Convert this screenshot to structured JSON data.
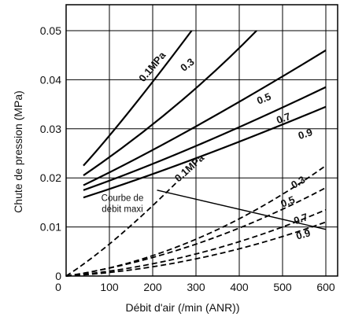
{
  "chart_data": {
    "type": "line",
    "title": "",
    "xlabel": "Débit d'air (/min (ANR))",
    "ylabel": "Chute de pression (MPa)",
    "xlim": [
      0,
      630
    ],
    "ylim": [
      0,
      0.054
    ],
    "x_ticks": [
      0,
      100,
      200,
      300,
      400,
      500,
      600
    ],
    "x_tick_labels": [
      "0",
      "100",
      "200",
      "300",
      "400",
      "500",
      "600"
    ],
    "y_ticks": [
      0,
      0.01,
      0.02,
      0.03,
      0.04,
      0.05
    ],
    "y_tick_labels": [
      "0",
      "0.01",
      "0.02",
      "0.03",
      "0.04",
      "0.05"
    ],
    "grid": true,
    "series": [
      {
        "name": "0.1MPa",
        "style": "solid",
        "x": [
          40,
          150,
          290
        ],
        "y": [
          0.0225,
          0.034,
          0.05
        ]
      },
      {
        "name": "0.3",
        "style": "solid",
        "x": [
          40,
          250,
          440
        ],
        "y": [
          0.0205,
          0.0345,
          0.05
        ]
      },
      {
        "name": "0.5",
        "style": "solid",
        "x": [
          40,
          300,
          600
        ],
        "y": [
          0.0185,
          0.0305,
          0.046
        ]
      },
      {
        "name": "0.7",
        "style": "solid",
        "x": [
          40,
          300,
          600
        ],
        "y": [
          0.0175,
          0.0265,
          0.0385
        ]
      },
      {
        "name": "0.9",
        "style": "solid",
        "x": [
          40,
          300,
          600
        ],
        "y": [
          0.016,
          0.024,
          0.0345
        ]
      },
      {
        "name": "0.1MPa",
        "style": "dashed",
        "x": [
          0,
          120,
          260
        ],
        "y": [
          0,
          0.008,
          0.0195
        ]
      },
      {
        "name": "0.3",
        "style": "dashed",
        "x": [
          0,
          300,
          600
        ],
        "y": [
          0,
          0.0075,
          0.0225
        ]
      },
      {
        "name": "0.5",
        "style": "dashed",
        "x": [
          0,
          300,
          600
        ],
        "y": [
          0,
          0.0065,
          0.018
        ]
      },
      {
        "name": "0.7",
        "style": "dashed",
        "x": [
          0,
          300,
          600
        ],
        "y": [
          0,
          0.0045,
          0.0135
        ]
      },
      {
        "name": "0.9",
        "style": "dashed",
        "x": [
          0,
          300,
          600
        ],
        "y": [
          0,
          0.0035,
          0.011
        ]
      }
    ],
    "max_flow_curve": {
      "name": "Courbe de débit maxi",
      "x": [
        210,
        600
      ],
      "y": [
        0.0175,
        0.0095
      ]
    },
    "labels": [
      {
        "text": "0.1MPa",
        "x": 205,
        "y": 0.0422,
        "angle": -50
      },
      {
        "text": "0.3",
        "x": 285,
        "y": 0.0425,
        "angle": -38
      },
      {
        "text": "0.5",
        "x": 460,
        "y": 0.0355,
        "angle": -22
      },
      {
        "text": "0.7",
        "x": 505,
        "y": 0.0315,
        "angle": -20
      },
      {
        "text": "0.9",
        "x": 555,
        "y": 0.0283,
        "angle": -18
      },
      {
        "text": "0.1MPa",
        "x": 290,
        "y": 0.0215,
        "angle": -42
      },
      {
        "text": "0.3",
        "x": 540,
        "y": 0.0185,
        "angle": -30
      },
      {
        "text": "0.5",
        "x": 515,
        "y": 0.0145,
        "angle": -22
      },
      {
        "text": "0.7",
        "x": 545,
        "y": 0.011,
        "angle": -20
      },
      {
        "text": "0.9",
        "x": 550,
        "y": 0.0078,
        "angle": -16
      }
    ],
    "annotation": {
      "lines": [
        "Courbe de",
        "débit maxi"
      ],
      "x": 130,
      "y": 0.0153
    }
  }
}
